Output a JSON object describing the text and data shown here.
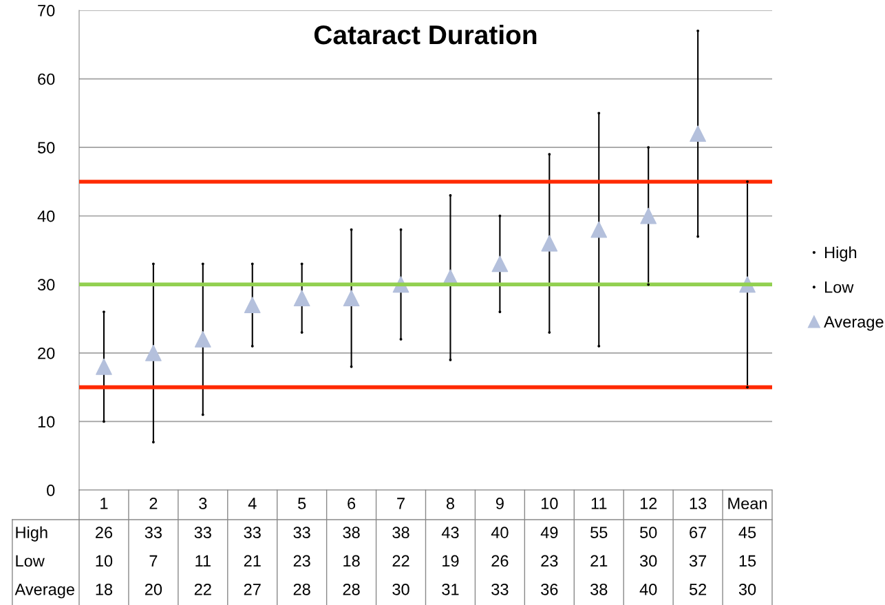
{
  "chart_data": {
    "type": "scatter",
    "title": "Cataract Duration",
    "categories": [
      "1",
      "2",
      "3",
      "4",
      "5",
      "6",
      "7",
      "8",
      "9",
      "10",
      "11",
      "12",
      "13",
      "Mean"
    ],
    "series": [
      {
        "name": "High",
        "marker": "none",
        "color": "#000000",
        "values": [
          26,
          33,
          33,
          33,
          33,
          38,
          38,
          43,
          40,
          49,
          55,
          50,
          67,
          45
        ]
      },
      {
        "name": "Low",
        "marker": "none",
        "color": "#000000",
        "values": [
          10,
          7,
          11,
          21,
          23,
          18,
          22,
          19,
          26,
          23,
          21,
          30,
          37,
          15
        ]
      },
      {
        "name": "Average",
        "color": "#b4c0dc",
        "marker": "triangle",
        "values": [
          18,
          20,
          22,
          27,
          28,
          28,
          30,
          31,
          33,
          36,
          38,
          40,
          52,
          30
        ]
      }
    ],
    "ref_lines": [
      {
        "axis": "y",
        "value": 45,
        "color": "#ff2a00"
      },
      {
        "axis": "y",
        "value": 15,
        "color": "#ff2a00"
      },
      {
        "axis": "y",
        "value": 30,
        "color": "#92d050"
      }
    ],
    "ylim": [
      0,
      70
    ],
    "yticks": [
      0,
      10,
      20,
      30,
      40,
      50,
      60,
      70
    ],
    "grid": "y",
    "legend": "right",
    "data_labels": true
  }
}
